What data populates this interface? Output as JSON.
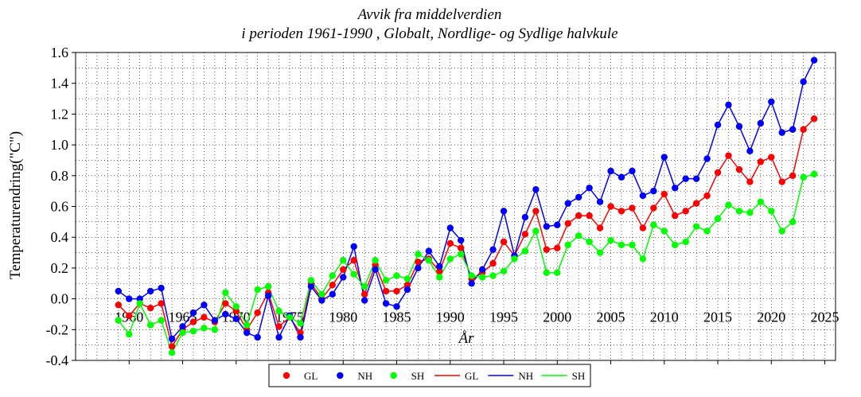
{
  "chart_data": {
    "type": "line",
    "title_line1": "Avvik fra middelverdien",
    "title_line2": "i perioden 1961-1990 , Globalt, Nordlige- og Sydlige halvkule",
    "xlabel": "År",
    "ylabel": "Temperaturendring(\"C\")",
    "xlim": [
      1955,
      2026
    ],
    "ylim": [
      -0.4,
      1.6
    ],
    "xticks": [
      "1960",
      "1965",
      "1970",
      "1975",
      "1980",
      "1985",
      "1990",
      "1995",
      "2000",
      "2005",
      "2010",
      "2015",
      "2020",
      "2025"
    ],
    "yticks": [
      "1.6",
      "1.4",
      "1.2",
      "1.0",
      "0.8",
      "0.6",
      "0.4",
      "0.2",
      "0.0",
      "-0.2",
      "-0.4"
    ],
    "grid": true,
    "x": [
      1959,
      1960,
      1961,
      1962,
      1963,
      1964,
      1965,
      1966,
      1967,
      1968,
      1969,
      1970,
      1971,
      1972,
      1973,
      1974,
      1975,
      1976,
      1977,
      1978,
      1979,
      1980,
      1981,
      1982,
      1983,
      1984,
      1985,
      1986,
      1987,
      1988,
      1989,
      1990,
      1991,
      1992,
      1993,
      1994,
      1995,
      1996,
      1997,
      1998,
      1999,
      2000,
      2001,
      2002,
      2003,
      2004,
      2005,
      2006,
      2007,
      2008,
      2009,
      2010,
      2011,
      2012,
      2013,
      2014,
      2015,
      2016,
      2017,
      2018,
      2019,
      2020,
      2021,
      2022,
      2023,
      2024
    ],
    "series": [
      {
        "name": "GL",
        "color": "#ff0000",
        "values": [
          -0.04,
          -0.11,
          -0.03,
          -0.06,
          -0.03,
          -0.31,
          -0.2,
          -0.15,
          -0.12,
          -0.15,
          -0.03,
          -0.08,
          -0.2,
          -0.09,
          0.04,
          -0.18,
          -0.12,
          -0.22,
          0.1,
          0.0,
          0.09,
          0.19,
          0.25,
          0.03,
          0.22,
          0.05,
          0.05,
          0.09,
          0.24,
          0.26,
          0.18,
          0.36,
          0.33,
          0.13,
          0.17,
          0.23,
          0.37,
          0.28,
          0.42,
          0.57,
          0.32,
          0.33,
          0.49,
          0.54,
          0.54,
          0.46,
          0.6,
          0.57,
          0.59,
          0.46,
          0.59,
          0.68,
          0.54,
          0.57,
          0.62,
          0.67,
          0.82,
          0.93,
          0.84,
          0.76,
          0.89,
          0.92,
          0.76,
          0.8,
          1.1,
          1.17
        ]
      },
      {
        "name": "NH",
        "color": "#0000ff",
        "values": [
          0.05,
          0.0,
          0.0,
          0.05,
          0.07,
          -0.26,
          -0.18,
          -0.09,
          -0.04,
          -0.14,
          -0.1,
          -0.13,
          -0.22,
          -0.25,
          0.02,
          -0.25,
          -0.11,
          -0.25,
          0.08,
          -0.01,
          0.03,
          0.14,
          0.34,
          -0.01,
          0.19,
          -0.03,
          -0.05,
          0.06,
          0.2,
          0.31,
          0.21,
          0.46,
          0.38,
          0.1,
          0.19,
          0.32,
          0.57,
          0.28,
          0.53,
          0.71,
          0.47,
          0.48,
          0.62,
          0.66,
          0.72,
          0.63,
          0.83,
          0.79,
          0.83,
          0.67,
          0.7,
          0.92,
          0.72,
          0.78,
          0.78,
          0.91,
          1.13,
          1.26,
          1.12,
          0.96,
          1.14,
          1.28,
          1.08,
          1.1,
          1.41,
          1.55
        ]
      },
      {
        "name": "SH",
        "color": "#00ff00",
        "values": [
          -0.14,
          -0.23,
          -0.03,
          -0.17,
          -0.14,
          -0.35,
          -0.22,
          -0.21,
          -0.19,
          -0.2,
          0.04,
          -0.05,
          -0.17,
          0.06,
          0.08,
          -0.08,
          -0.12,
          -0.16,
          0.12,
          0.03,
          0.15,
          0.25,
          0.16,
          0.08,
          0.25,
          0.12,
          0.15,
          0.13,
          0.29,
          0.25,
          0.14,
          0.26,
          0.29,
          0.15,
          0.14,
          0.15,
          0.18,
          0.26,
          0.31,
          0.44,
          0.17,
          0.17,
          0.35,
          0.41,
          0.37,
          0.3,
          0.38,
          0.35,
          0.35,
          0.26,
          0.48,
          0.44,
          0.35,
          0.37,
          0.47,
          0.44,
          0.52,
          0.61,
          0.57,
          0.56,
          0.63,
          0.57,
          0.44,
          0.5,
          0.79,
          0.81
        ]
      }
    ],
    "legend": {
      "placement": "bottom-center",
      "entries": [
        {
          "label": "GL",
          "kind": "marker",
          "color": "#ff0000"
        },
        {
          "label": "NH",
          "kind": "marker",
          "color": "#0000ff"
        },
        {
          "label": "SH",
          "kind": "marker",
          "color": "#00ff00"
        },
        {
          "label": "GL",
          "kind": "line",
          "color": "#ff0000"
        },
        {
          "label": "NH",
          "kind": "line",
          "color": "#0000ff"
        },
        {
          "label": "SH",
          "kind": "line",
          "color": "#00ff00"
        }
      ]
    }
  }
}
